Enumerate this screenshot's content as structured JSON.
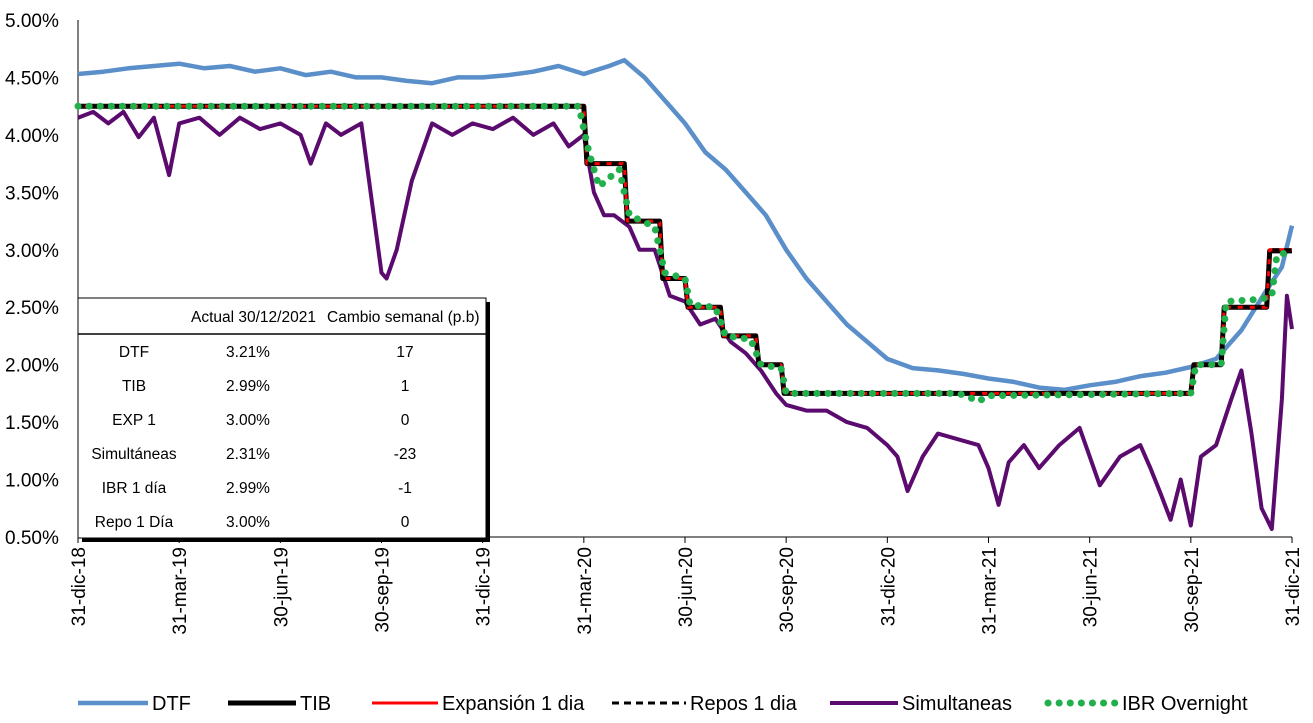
{
  "chart_data": {
    "type": "line",
    "title": "",
    "xlabel": "",
    "ylabel": "",
    "ylim": [
      0.5,
      5.0
    ],
    "y_ticks": [
      "5.00%",
      "4.50%",
      "4.00%",
      "3.50%",
      "3.00%",
      "2.50%",
      "2.00%",
      "1.50%",
      "1.00%",
      "0.50%"
    ],
    "x_ticks": [
      "31-dic-18",
      "31-mar-19",
      "30-jun-19",
      "30-sep-19",
      "31-dic-19",
      "31-mar-20",
      "30-jun-20",
      "30-sep-20",
      "31-dic-20",
      "31-mar-21",
      "30-jun-21",
      "30-sep-21",
      "31-dic-21"
    ],
    "legend_position": "bottom",
    "colors": {
      "DTF": "#5b8fc9",
      "TIB": "#000000",
      "Expansion": "#ff0000",
      "Repos": "#000000",
      "Simultaneas": "#5b0a6e",
      "IBR": "#22b04c"
    },
    "series": [
      {
        "name": "DTF",
        "style": "solid",
        "points": [
          [
            0,
            4.53
          ],
          [
            0.25,
            4.55
          ],
          [
            0.5,
            4.58
          ],
          [
            0.75,
            4.6
          ],
          [
            1.0,
            4.62
          ],
          [
            1.25,
            4.58
          ],
          [
            1.5,
            4.6
          ],
          [
            1.75,
            4.55
          ],
          [
            2.0,
            4.58
          ],
          [
            2.25,
            4.52
          ],
          [
            2.5,
            4.55
          ],
          [
            2.75,
            4.5
          ],
          [
            3.0,
            4.5
          ],
          [
            3.25,
            4.47
          ],
          [
            3.5,
            4.45
          ],
          [
            3.75,
            4.5
          ],
          [
            4.0,
            4.5
          ],
          [
            4.25,
            4.52
          ],
          [
            4.5,
            4.55
          ],
          [
            4.75,
            4.6
          ],
          [
            5.0,
            4.53
          ],
          [
            5.25,
            4.6
          ],
          [
            5.4,
            4.65
          ],
          [
            5.6,
            4.5
          ],
          [
            5.8,
            4.3
          ],
          [
            6.0,
            4.1
          ],
          [
            6.2,
            3.85
          ],
          [
            6.4,
            3.7
          ],
          [
            6.6,
            3.5
          ],
          [
            6.8,
            3.3
          ],
          [
            7.0,
            3.0
          ],
          [
            7.2,
            2.75
          ],
          [
            7.4,
            2.55
          ],
          [
            7.6,
            2.35
          ],
          [
            7.8,
            2.2
          ],
          [
            8.0,
            2.05
          ],
          [
            8.25,
            1.97
          ],
          [
            8.5,
            1.95
          ],
          [
            8.75,
            1.92
          ],
          [
            9.0,
            1.88
          ],
          [
            9.25,
            1.85
          ],
          [
            9.5,
            1.8
          ],
          [
            9.75,
            1.78
          ],
          [
            10.0,
            1.82
          ],
          [
            10.25,
            1.85
          ],
          [
            10.5,
            1.9
          ],
          [
            10.75,
            1.93
          ],
          [
            11.0,
            1.98
          ],
          [
            11.25,
            2.05
          ],
          [
            11.5,
            2.3
          ],
          [
            11.75,
            2.65
          ],
          [
            11.9,
            2.85
          ],
          [
            12.0,
            3.21
          ]
        ]
      },
      {
        "name": "TIB",
        "style": "solid",
        "points": [
          [
            0,
            4.25
          ],
          [
            5.0,
            4.25
          ],
          [
            5.03,
            3.75
          ],
          [
            5.4,
            3.75
          ],
          [
            5.43,
            3.25
          ],
          [
            5.75,
            3.25
          ],
          [
            5.78,
            2.75
          ],
          [
            6.0,
            2.75
          ],
          [
            6.03,
            2.5
          ],
          [
            6.35,
            2.5
          ],
          [
            6.38,
            2.25
          ],
          [
            6.7,
            2.25
          ],
          [
            6.73,
            2.0
          ],
          [
            6.95,
            2.0
          ],
          [
            6.98,
            1.75
          ],
          [
            11.0,
            1.75
          ],
          [
            11.03,
            2.0
          ],
          [
            11.3,
            2.0
          ],
          [
            11.33,
            2.5
          ],
          [
            11.75,
            2.5
          ],
          [
            11.78,
            2.99
          ],
          [
            12.0,
            2.99
          ]
        ]
      },
      {
        "name": "Expansión 1 dia",
        "style": "solid",
        "points": [
          [
            0,
            4.25
          ],
          [
            5.0,
            4.25
          ],
          [
            5.03,
            3.75
          ],
          [
            5.4,
            3.75
          ],
          [
            5.43,
            3.25
          ],
          [
            5.75,
            3.25
          ],
          [
            5.78,
            2.75
          ],
          [
            6.0,
            2.75
          ],
          [
            6.03,
            2.5
          ],
          [
            6.35,
            2.5
          ],
          [
            6.38,
            2.25
          ],
          [
            6.7,
            2.25
          ],
          [
            6.73,
            2.0
          ],
          [
            6.95,
            2.0
          ],
          [
            6.98,
            1.75
          ],
          [
            11.0,
            1.75
          ],
          [
            11.03,
            2.0
          ],
          [
            11.3,
            2.0
          ],
          [
            11.33,
            2.5
          ],
          [
            11.75,
            2.5
          ],
          [
            11.78,
            3.0
          ],
          [
            12.0,
            3.0
          ]
        ]
      },
      {
        "name": "Repos 1 dia",
        "style": "dashed",
        "points": [
          [
            0,
            4.25
          ],
          [
            5.0,
            4.25
          ],
          [
            5.03,
            3.75
          ],
          [
            5.4,
            3.75
          ],
          [
            5.43,
            3.25
          ],
          [
            5.75,
            3.25
          ],
          [
            5.78,
            2.75
          ],
          [
            6.0,
            2.75
          ],
          [
            6.03,
            2.5
          ],
          [
            6.35,
            2.5
          ],
          [
            6.38,
            2.25
          ],
          [
            6.7,
            2.25
          ],
          [
            6.73,
            2.0
          ],
          [
            6.95,
            2.0
          ],
          [
            6.98,
            1.75
          ],
          [
            11.0,
            1.75
          ],
          [
            11.03,
            2.0
          ],
          [
            11.3,
            2.0
          ],
          [
            11.33,
            2.5
          ],
          [
            11.75,
            2.5
          ],
          [
            11.78,
            3.0
          ],
          [
            12.0,
            3.0
          ]
        ]
      },
      {
        "name": "Simultaneas",
        "style": "solid",
        "points": [
          [
            0,
            4.15
          ],
          [
            0.15,
            4.2
          ],
          [
            0.3,
            4.1
          ],
          [
            0.45,
            4.2
          ],
          [
            0.6,
            3.98
          ],
          [
            0.75,
            4.15
          ],
          [
            0.9,
            3.65
          ],
          [
            1.0,
            4.1
          ],
          [
            1.2,
            4.15
          ],
          [
            1.4,
            4.0
          ],
          [
            1.6,
            4.15
          ],
          [
            1.8,
            4.05
          ],
          [
            2.0,
            4.1
          ],
          [
            2.2,
            4.0
          ],
          [
            2.3,
            3.75
          ],
          [
            2.45,
            4.1
          ],
          [
            2.6,
            4.0
          ],
          [
            2.8,
            4.1
          ],
          [
            3.0,
            2.8
          ],
          [
            3.05,
            2.75
          ],
          [
            3.15,
            3.0
          ],
          [
            3.3,
            3.6
          ],
          [
            3.5,
            4.1
          ],
          [
            3.7,
            4.0
          ],
          [
            3.9,
            4.1
          ],
          [
            4.1,
            4.05
          ],
          [
            4.3,
            4.15
          ],
          [
            4.5,
            4.0
          ],
          [
            4.7,
            4.1
          ],
          [
            4.85,
            3.9
          ],
          [
            5.0,
            4.0
          ],
          [
            5.1,
            3.5
          ],
          [
            5.2,
            3.3
          ],
          [
            5.3,
            3.3
          ],
          [
            5.45,
            3.2
          ],
          [
            5.55,
            3.0
          ],
          [
            5.7,
            3.0
          ],
          [
            5.85,
            2.6
          ],
          [
            6.0,
            2.55
          ],
          [
            6.15,
            2.35
          ],
          [
            6.3,
            2.4
          ],
          [
            6.45,
            2.2
          ],
          [
            6.6,
            2.1
          ],
          [
            6.75,
            1.95
          ],
          [
            6.9,
            1.75
          ],
          [
            7.0,
            1.65
          ],
          [
            7.2,
            1.6
          ],
          [
            7.4,
            1.6
          ],
          [
            7.6,
            1.5
          ],
          [
            7.8,
            1.45
          ],
          [
            8.0,
            1.3
          ],
          [
            8.1,
            1.2
          ],
          [
            8.2,
            0.9
          ],
          [
            8.35,
            1.2
          ],
          [
            8.5,
            1.4
          ],
          [
            8.7,
            1.35
          ],
          [
            8.9,
            1.3
          ],
          [
            9.0,
            1.1
          ],
          [
            9.1,
            0.78
          ],
          [
            9.2,
            1.15
          ],
          [
            9.35,
            1.3
          ],
          [
            9.5,
            1.1
          ],
          [
            9.7,
            1.3
          ],
          [
            9.9,
            1.45
          ],
          [
            10.0,
            1.2
          ],
          [
            10.1,
            0.95
          ],
          [
            10.3,
            1.2
          ],
          [
            10.5,
            1.3
          ],
          [
            10.6,
            1.1
          ],
          [
            10.7,
            0.88
          ],
          [
            10.8,
            0.65
          ],
          [
            10.9,
            1.0
          ],
          [
            11.0,
            0.6
          ],
          [
            11.1,
            1.2
          ],
          [
            11.25,
            1.3
          ],
          [
            11.4,
            1.7
          ],
          [
            11.5,
            1.95
          ],
          [
            11.6,
            1.4
          ],
          [
            11.7,
            0.75
          ],
          [
            11.8,
            0.57
          ],
          [
            11.9,
            1.7
          ],
          [
            11.95,
            2.6
          ],
          [
            12.0,
            2.31
          ]
        ]
      },
      {
        "name": "IBR Overnight",
        "style": "dotted",
        "points": [
          [
            0,
            4.25
          ],
          [
            4.95,
            4.25
          ],
          [
            5.05,
            3.85
          ],
          [
            5.15,
            3.55
          ],
          [
            5.35,
            3.7
          ],
          [
            5.45,
            3.3
          ],
          [
            5.7,
            3.2
          ],
          [
            5.8,
            2.8
          ],
          [
            6.0,
            2.75
          ],
          [
            6.05,
            2.52
          ],
          [
            6.3,
            2.5
          ],
          [
            6.4,
            2.25
          ],
          [
            6.65,
            2.22
          ],
          [
            6.75,
            2.0
          ],
          [
            6.95,
            1.97
          ],
          [
            7.0,
            1.75
          ],
          [
            8.7,
            1.75
          ],
          [
            8.8,
            1.72
          ],
          [
            8.9,
            1.68
          ],
          [
            9.0,
            1.73
          ],
          [
            11.0,
            1.75
          ],
          [
            11.05,
            2.0
          ],
          [
            11.3,
            2.0
          ],
          [
            11.35,
            2.55
          ],
          [
            11.7,
            2.57
          ],
          [
            11.8,
            2.6
          ],
          [
            11.85,
            2.95
          ],
          [
            12.0,
            2.99
          ]
        ]
      }
    ],
    "summary_table": {
      "headers": [
        "",
        "Actual 30/12/2021",
        "Cambio semanal (p.b)"
      ],
      "rows": [
        [
          "DTF",
          "3.21%",
          "17"
        ],
        [
          "TIB",
          "2.99%",
          "1"
        ],
        [
          "EXP 1",
          "3.00%",
          "0"
        ],
        [
          "Simultáneas",
          "2.31%",
          "-23"
        ],
        [
          "IBR 1 día",
          "2.99%",
          "-1"
        ],
        [
          "Repo 1 Día",
          "3.00%",
          "0"
        ]
      ]
    },
    "legend": [
      "DTF",
      "TIB",
      "Expansión 1 dia",
      "Repos 1 dia",
      "Simultaneas",
      "IBR Overnight"
    ]
  }
}
